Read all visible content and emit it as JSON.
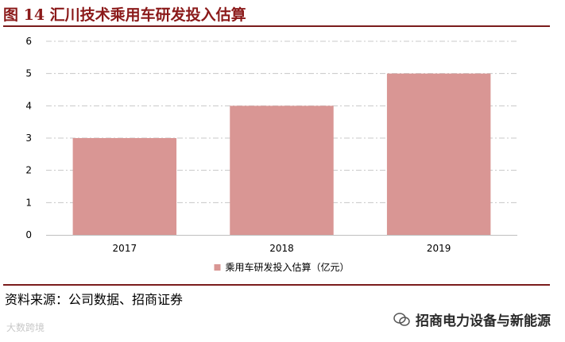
{
  "figure": {
    "title": "图 14 汇川技术乘用车研发投入估算"
  },
  "source": {
    "text": "资料来源：公司数据、招商证券"
  },
  "watermarks": {
    "left": "大数跨境",
    "right": "招商电力设备与新能源"
  },
  "chart_data": {
    "type": "bar",
    "categories": [
      "2017",
      "2018",
      "2019"
    ],
    "series": [
      {
        "name": "乘用车研发投入估算（亿元）",
        "values": [
          3,
          4,
          5
        ],
        "color": "#d99694"
      }
    ],
    "ylim": [
      0,
      6
    ],
    "yticks": [
      "0",
      "1",
      "2",
      "3",
      "4",
      "5",
      "6"
    ],
    "grid": true,
    "legend_position": "bottom"
  }
}
